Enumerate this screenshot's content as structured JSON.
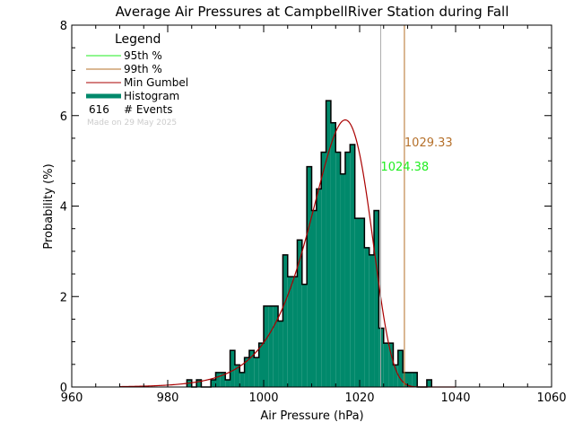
{
  "chart_data": {
    "type": "bar",
    "title": "Average Air Pressures at CampbellRiver Station during Fall",
    "xlabel": "Air Pressure (hPa)",
    "ylabel": "Probability (%)",
    "xlim": [
      960,
      1060
    ],
    "ylim": [
      0,
      8
    ],
    "xticks": [
      960,
      980,
      1000,
      1020,
      1040,
      1060
    ],
    "yticks": [
      0,
      2,
      4,
      6,
      8
    ],
    "bin_width": 1,
    "bins": [
      [
        984,
        0.16
      ],
      [
        985,
        0
      ],
      [
        986,
        0.16
      ],
      [
        987,
        0
      ],
      [
        988,
        0
      ],
      [
        989,
        0.16
      ],
      [
        990,
        0.32
      ],
      [
        991,
        0.32
      ],
      [
        992,
        0.16
      ],
      [
        993,
        0.81
      ],
      [
        994,
        0.49
      ],
      [
        995,
        0.32
      ],
      [
        996,
        0.65
      ],
      [
        997,
        0.81
      ],
      [
        998,
        0.65
      ],
      [
        999,
        0.97
      ],
      [
        1000,
        1.79
      ],
      [
        1001,
        1.79
      ],
      [
        1002,
        1.79
      ],
      [
        1003,
        1.46
      ],
      [
        1004,
        2.92
      ],
      [
        1005,
        2.44
      ],
      [
        1006,
        2.44
      ],
      [
        1007,
        3.25
      ],
      [
        1008,
        2.27
      ],
      [
        1009,
        4.87
      ],
      [
        1010,
        3.9
      ],
      [
        1011,
        4.38
      ],
      [
        1012,
        5.19
      ],
      [
        1013,
        6.33
      ],
      [
        1014,
        5.84
      ],
      [
        1015,
        5.19
      ],
      [
        1016,
        4.71
      ],
      [
        1017,
        5.19
      ],
      [
        1018,
        5.36
      ],
      [
        1019,
        3.73
      ],
      [
        1020,
        3.73
      ],
      [
        1021,
        3.08
      ],
      [
        1022,
        2.92
      ],
      [
        1023,
        3.9
      ],
      [
        1024,
        1.3
      ],
      [
        1025,
        0.97
      ],
      [
        1026,
        0.97
      ],
      [
        1027,
        0.49
      ],
      [
        1028,
        0.81
      ],
      [
        1029,
        0.32
      ],
      [
        1030,
        0.32
      ],
      [
        1031,
        0.32
      ],
      [
        1032,
        0
      ],
      [
        1033,
        0
      ],
      [
        1034,
        0.16
      ]
    ],
    "gumbel": {
      "mu": 1017,
      "beta": 6.23
    },
    "p95": {
      "value": 1024.38,
      "label": "1024.38"
    },
    "p99": {
      "value": 1029.33,
      "label": "1029.33"
    },
    "grid": false,
    "legend": {
      "placement": "top-left",
      "title": "Legend",
      "entries": [
        "95th %",
        "99th %",
        "Min Gumbel",
        "Histogram"
      ],
      "events_count": "616",
      "events_label": "# Events",
      "made_on": "Made on 29 May 2025"
    },
    "colors": {
      "histogram": "#00896b",
      "gumbel": "#aa0000",
      "p95": "#22ee22",
      "p99": "#b5702a",
      "p95_line": "#aaaaaa"
    }
  }
}
